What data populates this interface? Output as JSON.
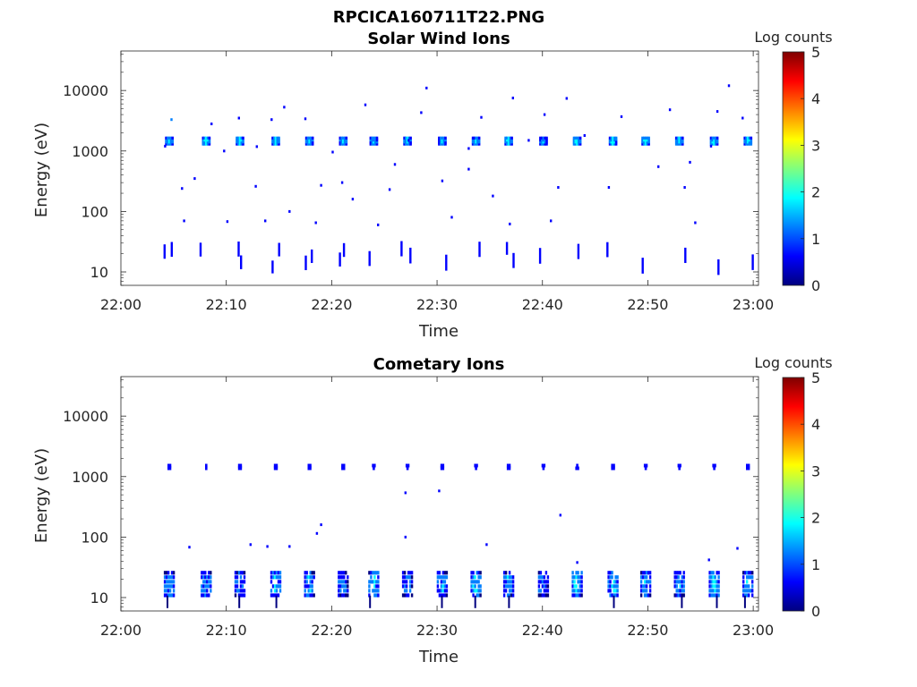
{
  "figure": {
    "title": "RPCICA160711T22.PNG"
  },
  "colorscale": {
    "colors": [
      "#00007f",
      "#0000ff",
      "#007fff",
      "#00ffff",
      "#7fff7f",
      "#ffff00",
      "#ff7f00",
      "#ff0000",
      "#7f0000"
    ]
  },
  "chart_data": [
    {
      "type": "heatmap",
      "title": "Solar Wind Ions",
      "xlabel": "Time",
      "ylabel": "Energy (eV)",
      "x_ticks": [
        "22:00",
        "22:10",
        "22:20",
        "22:30",
        "22:40",
        "22:50",
        "23:00"
      ],
      "x_tick_minutes": [
        0,
        10,
        20,
        30,
        40,
        50,
        60
      ],
      "xlim_minutes": [
        0,
        60.5
      ],
      "y_scale": "log",
      "ylim": [
        6,
        45000
      ],
      "y_ticks": [
        10,
        100,
        1000,
        10000
      ],
      "y_tick_labels": [
        "10",
        "100",
        "1000",
        "10000"
      ],
      "colorbar": {
        "label": "Log counts",
        "range": [
          0,
          5
        ],
        "ticks": [
          "0",
          "1",
          "2",
          "3",
          "4",
          "5"
        ]
      },
      "sweep_times_min": [
        4.6,
        8.1,
        11.3,
        14.7,
        17.9,
        21.1,
        24.0,
        27.2,
        30.5,
        33.7,
        36.8,
        40.1,
        43.3,
        46.7,
        49.8,
        53.0,
        56.3,
        59.5
      ],
      "main_band": {
        "energy_low": 1250,
        "energy_high": 1700,
        "log_counts": [
          1.9,
          2.1,
          2.0,
          2.0,
          1.8,
          1.9,
          1.8,
          1.9,
          1.9,
          1.9,
          2.0,
          1.7,
          2.0,
          2.0,
          2.0,
          2.0,
          2.0,
          2.0
        ]
      },
      "low_band": {
        "energy_low": 12,
        "energy_high": 25,
        "log_counts": 0.5
      },
      "scatter_points": [
        [
          4.8,
          3300,
          1.1
        ],
        [
          7.0,
          350,
          0.5
        ],
        [
          8.6,
          2800,
          0.6
        ],
        [
          9.8,
          1000,
          0.6
        ],
        [
          11.2,
          3500,
          0.6
        ],
        [
          14.3,
          3300,
          0.8
        ],
        [
          15.5,
          5300,
          0.5
        ],
        [
          16.0,
          100,
          0.5
        ],
        [
          17.5,
          3400,
          0.5
        ],
        [
          19.0,
          270,
          0.5
        ],
        [
          21.0,
          300,
          0.6
        ],
        [
          23.2,
          5800,
          0.5
        ],
        [
          25.5,
          230,
          0.5
        ],
        [
          27.3,
          1500,
          0.8
        ],
        [
          28.5,
          4300,
          0.7
        ],
        [
          29.0,
          11000,
          0.6
        ],
        [
          30.5,
          320,
          0.5
        ],
        [
          33.0,
          500,
          0.5
        ],
        [
          34.2,
          3600,
          0.5
        ],
        [
          37.2,
          7500,
          0.5
        ],
        [
          40.2,
          4000,
          0.8
        ],
        [
          41.5,
          250,
          0.5
        ],
        [
          42.3,
          7400,
          0.5
        ],
        [
          44.0,
          1800,
          0.5
        ],
        [
          46.3,
          250,
          0.5
        ],
        [
          47.5,
          3700,
          0.5
        ],
        [
          51.0,
          550,
          0.5
        ],
        [
          52.1,
          4800,
          0.6
        ],
        [
          53.5,
          250,
          0.5
        ],
        [
          56.6,
          4500,
          0.7
        ],
        [
          57.7,
          12000,
          0.5
        ],
        [
          59.0,
          3500,
          0.6
        ],
        [
          5.8,
          240,
          0.5
        ],
        [
          12.8,
          260,
          0.5
        ],
        [
          22.0,
          160,
          0.5
        ],
        [
          26.0,
          600,
          0.5
        ],
        [
          35.3,
          180,
          0.5
        ],
        [
          38.7,
          1500,
          0.5
        ],
        [
          47.0,
          1400,
          0.5
        ],
        [
          54.0,
          650,
          0.5
        ],
        [
          6.0,
          70,
          0.5
        ],
        [
          10.1,
          68,
          0.5
        ],
        [
          13.7,
          70,
          0.5
        ],
        [
          18.5,
          65,
          0.5
        ],
        [
          24.4,
          60,
          0.5
        ],
        [
          31.4,
          80,
          0.5
        ],
        [
          36.9,
          62,
          0.5
        ],
        [
          40.8,
          70,
          0.5
        ],
        [
          54.5,
          65,
          0.5
        ],
        [
          4.2,
          1200,
          0.5
        ],
        [
          12.9,
          1180,
          0.6
        ],
        [
          20.1,
          960,
          0.6
        ],
        [
          33.0,
          1100,
          0.5
        ],
        [
          56.0,
          1200,
          0.5
        ]
      ]
    },
    {
      "type": "heatmap",
      "title": "Cometary Ions",
      "xlabel": "Time",
      "ylabel": "Energy (eV)",
      "x_ticks": [
        "22:00",
        "22:10",
        "22:20",
        "22:30",
        "22:40",
        "22:50",
        "23:00"
      ],
      "x_tick_minutes": [
        0,
        10,
        20,
        30,
        40,
        50,
        60
      ],
      "xlim_minutes": [
        0,
        60.5
      ],
      "y_scale": "log",
      "ylim": [
        6,
        45000
      ],
      "y_ticks": [
        10,
        100,
        1000,
        10000
      ],
      "y_tick_labels": [
        "10",
        "100",
        "1000",
        "10000"
      ],
      "colorbar": {
        "label": "Log counts",
        "range": [
          0,
          5
        ],
        "ticks": [
          "0",
          "1",
          "2",
          "3",
          "4",
          "5"
        ]
      },
      "sweep_times_min": [
        4.6,
        8.1,
        11.3,
        14.7,
        17.9,
        21.1,
        24.0,
        27.2,
        30.5,
        33.7,
        36.8,
        40.1,
        43.3,
        46.7,
        49.8,
        53.0,
        56.3,
        59.5
      ],
      "main_band": {
        "energy_low": 1300,
        "energy_high": 1600,
        "log_counts": 0.9
      },
      "low_band": {
        "energy_low": 10,
        "energy_high": 28,
        "log_counts": [
          1.4,
          1.3,
          1.2,
          1.5,
          1.4,
          1.2,
          1.5,
          1.1,
          1.3,
          1.5,
          1.3,
          1.1,
          1.6,
          1.5,
          1.3,
          1.3,
          1.6,
          1.4
        ]
      },
      "scatter_points": [
        [
          6.5,
          68,
          0.5
        ],
        [
          12.3,
          75,
          0.5
        ],
        [
          13.9,
          70,
          0.5
        ],
        [
          16.0,
          70,
          0.5
        ],
        [
          19.0,
          160,
          0.5
        ],
        [
          18.6,
          115,
          0.5
        ],
        [
          27.0,
          540,
          0.5
        ],
        [
          27.0,
          100,
          0.5
        ],
        [
          30.2,
          580,
          0.5
        ],
        [
          34.7,
          75,
          0.5
        ],
        [
          41.7,
          230,
          0.5
        ],
        [
          58.5,
          65,
          0.5
        ],
        [
          55.8,
          42,
          0.5
        ],
        [
          43.3,
          38,
          0.5
        ]
      ]
    }
  ]
}
